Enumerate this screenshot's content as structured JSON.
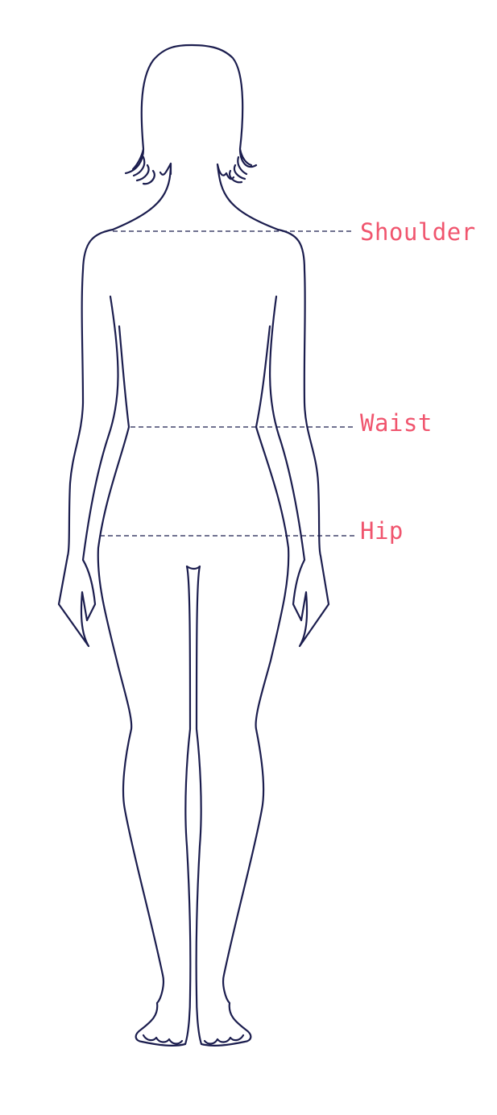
{
  "measurements": [
    {
      "id": "shoulder",
      "label": "Shoulder"
    },
    {
      "id": "waist",
      "label": "Waist"
    },
    {
      "id": "hip",
      "label": "Hip"
    }
  ],
  "colors": {
    "outline": "#1b1d4e",
    "label": "#f0556e",
    "background": "#ffffff"
  }
}
